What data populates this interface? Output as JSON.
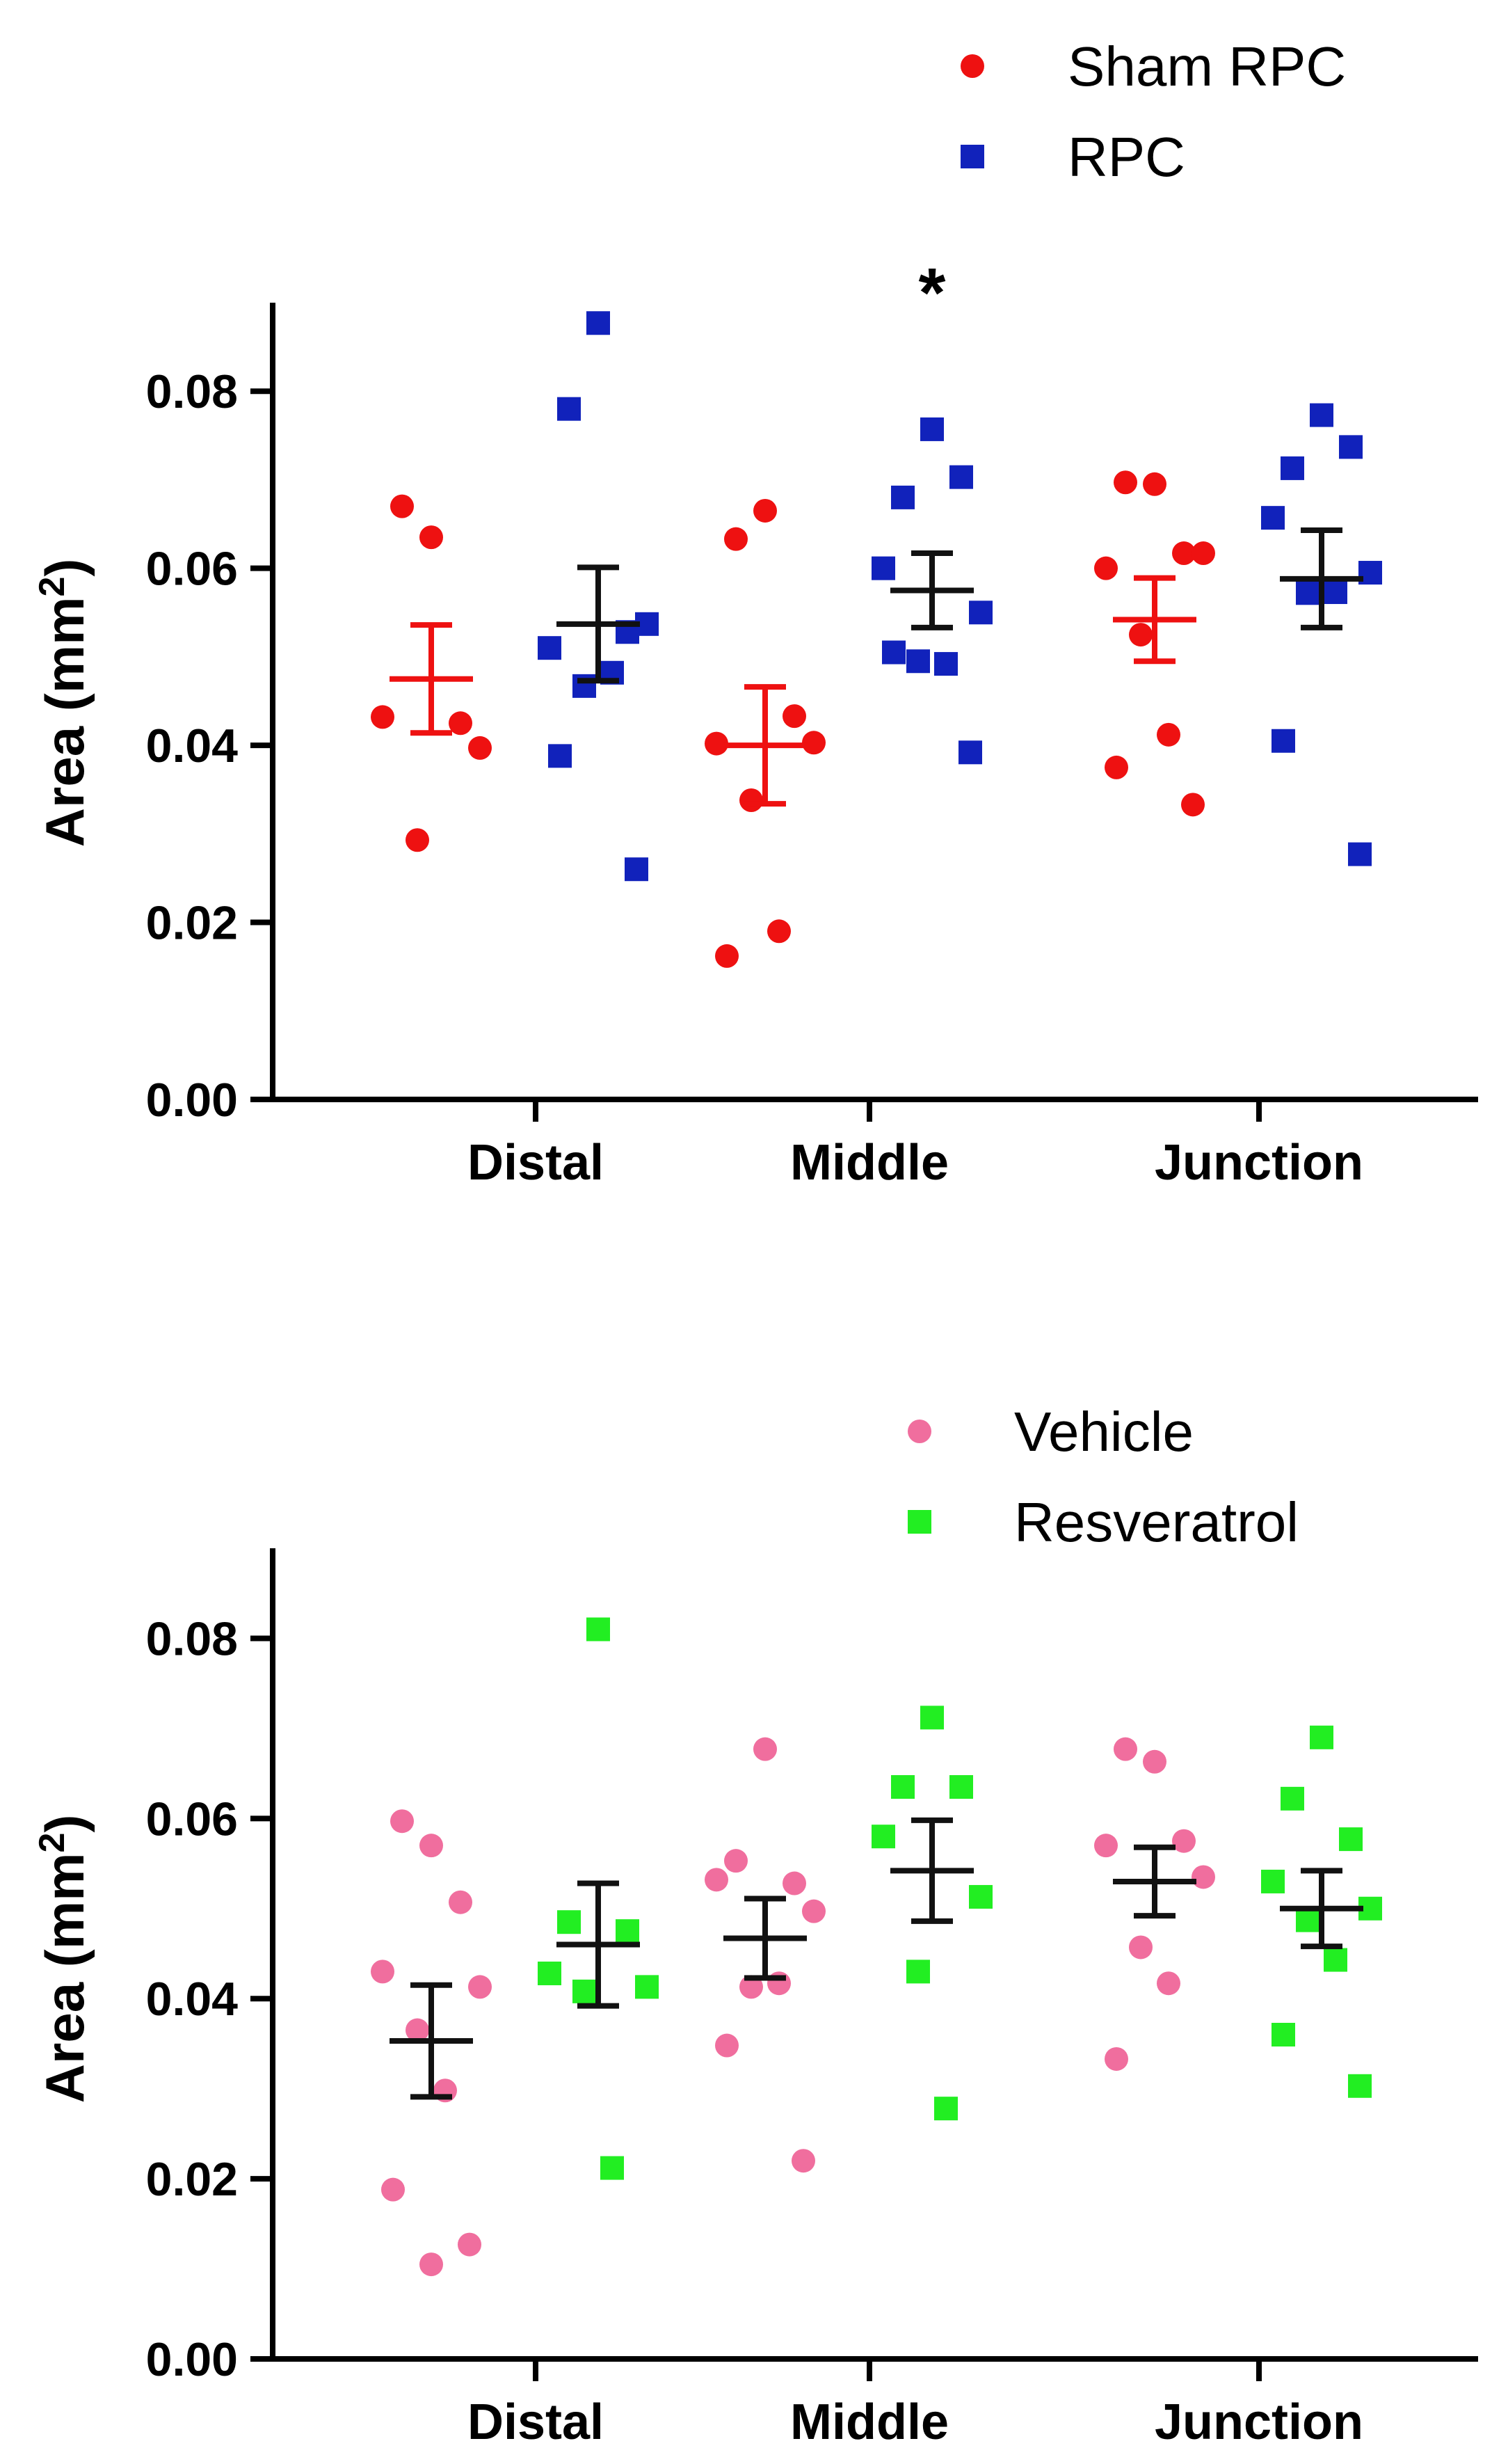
{
  "chart_data": [
    {
      "type": "scatter",
      "ylabel_main": "Area (mm",
      "ylabel_sup": "2",
      "ylabel_close": ")",
      "ylim": [
        0,
        0.09
      ],
      "yticks": [
        "0.00",
        "0.02",
        "0.04",
        "0.06",
        "0.08"
      ],
      "ytick_values": [
        0,
        0.02,
        0.04,
        0.06,
        0.08
      ],
      "categories": [
        "Distal",
        "Middle",
        "Junction"
      ],
      "legend_position": "top-right",
      "series": [
        {
          "name": "Sham RPC",
          "marker": "circle",
          "color": "#ee1111",
          "errbar_color": "#ee1111",
          "points": [
            [
              0.0635,
              0.067,
              0.0425,
              0.0432,
              0.0397,
              0.0293
            ],
            [
              0.0665,
              0.0633,
              0.0433,
              0.0402,
              0.0403,
              0.0338,
              0.019,
              0.0162
            ],
            [
              0.0695,
              0.0697,
              0.0617,
              0.06,
              0.0617,
              0.0525,
              0.0412,
              0.0375,
              0.0333
            ]
          ],
          "mean": [
            0.0475,
            0.04,
            0.0542
          ],
          "sem": [
            0.0061,
            0.0066,
            0.0047
          ]
        },
        {
          "name": "RPC",
          "marker": "square",
          "color": "#1122bb",
          "errbar_color": "#111111",
          "points": [
            [
              0.0877,
              0.078,
              0.0528,
              0.051,
              0.0537,
              0.0467,
              0.0482,
              0.0388,
              0.026
            ],
            [
              0.0757,
              0.068,
              0.0703,
              0.06,
              0.055,
              0.0495,
              0.0492,
              0.0505,
              0.0392
            ],
            [
              0.0773,
              0.0713,
              0.0737,
              0.0657,
              0.0595,
              0.0572,
              0.0573,
              0.0405,
              0.0277
            ]
          ],
          "mean": [
            0.0537,
            0.0575,
            0.0588
          ],
          "sem": [
            0.0064,
            0.0042,
            0.0055
          ]
        }
      ],
      "annotations": [
        {
          "text": "*",
          "category": "Middle",
          "series": "RPC"
        }
      ]
    },
    {
      "type": "scatter",
      "ylabel_main": "Area (mm",
      "ylabel_sup": "2",
      "ylabel_close": ")",
      "ylim": [
        0,
        0.09
      ],
      "yticks": [
        "0.00",
        "0.02",
        "0.04",
        "0.06",
        "0.08"
      ],
      "ytick_values": [
        0,
        0.02,
        0.04,
        0.06,
        0.08
      ],
      "categories": [
        "Distal",
        "Middle",
        "Junction"
      ],
      "legend_position": "top-right",
      "series": [
        {
          "name": "Vehicle",
          "marker": "circle",
          "color": "#f06e9e",
          "errbar_color": "#111111",
          "points": [
            [
              0.057,
              0.0597,
              0.0507,
              0.043,
              0.0413,
              0.0365,
              0.0298,
              0.0188,
              0.0127,
              0.0105
            ],
            [
              0.0677,
              0.0553,
              0.0528,
              0.0532,
              0.0497,
              0.0413,
              0.0417,
              0.0348,
              0.022
            ],
            [
              0.0663,
              0.0677,
              0.0575,
              0.057,
              0.0535,
              0.0457,
              0.0417,
              0.0333
            ]
          ],
          "mean": [
            0.0353,
            0.0467,
            0.053
          ],
          "sem": [
            0.0062,
            0.0044,
            0.0038
          ]
        },
        {
          "name": "Resveratrol",
          "marker": "square",
          "color": "#22ee22",
          "errbar_color": "#111111",
          "points": [
            [
              0.081,
              0.0485,
              0.0475,
              0.0428,
              0.0413,
              0.0408,
              0.0212
            ],
            [
              0.0712,
              0.0635,
              0.0635,
              0.058,
              0.0513,
              0.043,
              0.0278
            ],
            [
              0.069,
              0.0622,
              0.0577,
              0.053,
              0.05,
              0.0487,
              0.0443,
              0.036,
              0.0303
            ]
          ],
          "mean": [
            0.046,
            0.0542,
            0.05
          ],
          "sem": [
            0.0068,
            0.0056,
            0.0042
          ]
        }
      ],
      "annotations": []
    }
  ]
}
